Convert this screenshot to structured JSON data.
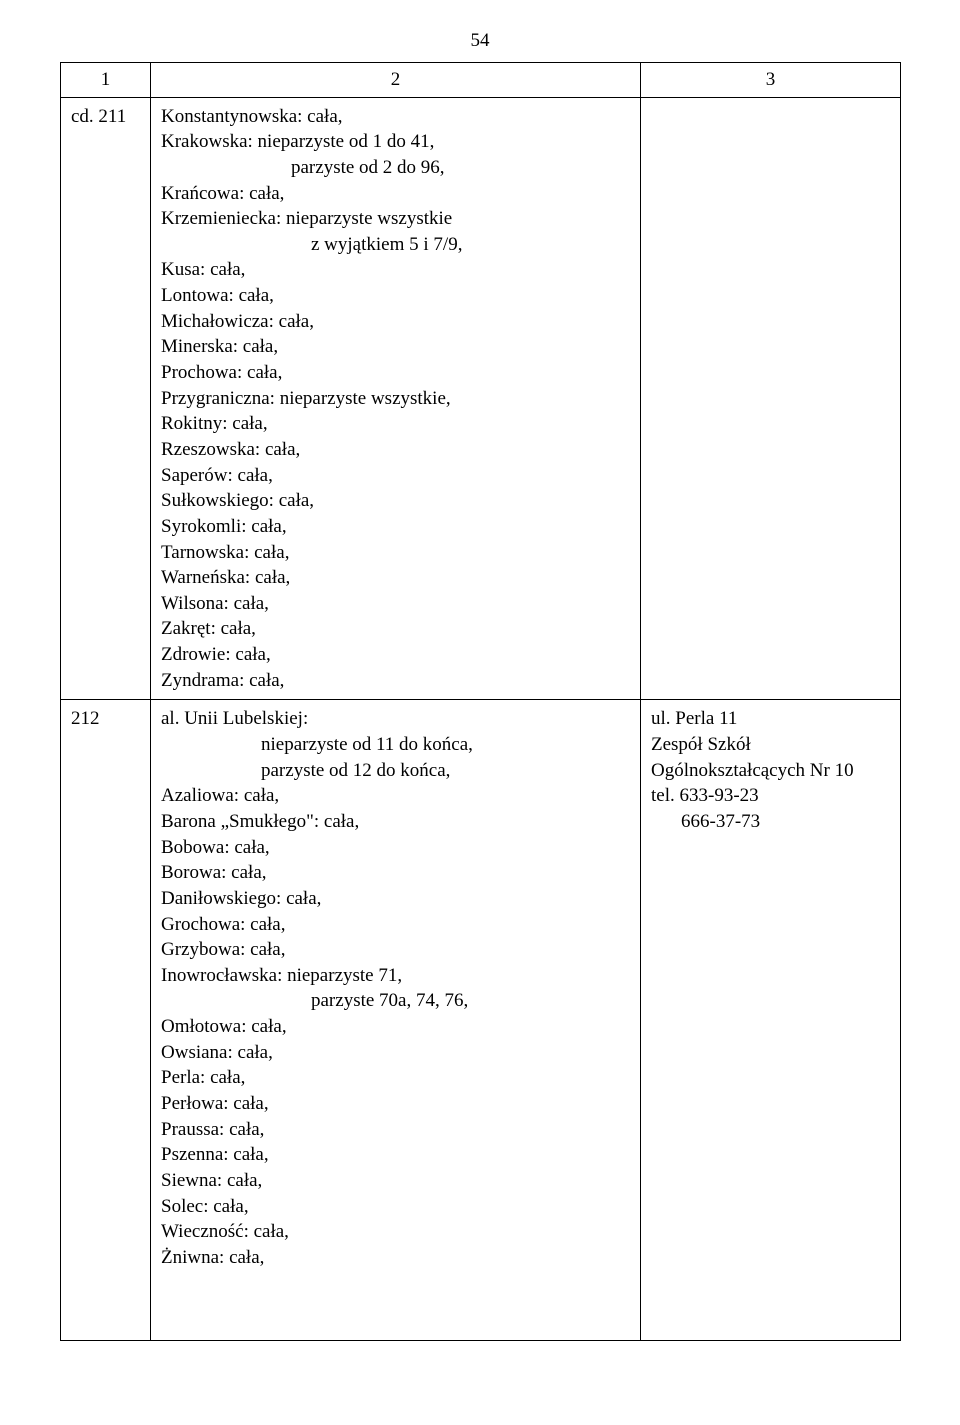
{
  "page_number": "54",
  "header": {
    "c1": "1",
    "c2": "2",
    "c3": "3"
  },
  "row1": {
    "label": "cd. 211",
    "lines": [
      "Konstantynowska: cała,",
      "Krakowska: nieparzyste od 1 do 41,",
      {
        "text": "parzyste od 2 do 96,",
        "class": "indent1"
      },
      "Krańcowa: cała,",
      "Krzemieniecka: nieparzyste wszystkie",
      {
        "text": "z wyjątkiem 5 i 7/9,",
        "class": "indent-wy"
      },
      "Kusa: cała,",
      "Lontowa: cała,",
      "Michałowicza: cała,",
      "Minerska: cała,",
      "Prochowa: cała,",
      "Przygraniczna: nieparzyste wszystkie,",
      "Rokitny: cała,",
      "Rzeszowska: cała,",
      "Saperów: cała,",
      "Sułkowskiego: cała,",
      "Syrokomli: cała,",
      "Tarnowska: cała,",
      "Warneńska: cała,",
      "Wilsona: cała,",
      "Zakręt: cała,",
      "Zdrowie: cała,",
      "Zyndrama: cała,"
    ],
    "col3": ""
  },
  "row2": {
    "label": "212",
    "lines": [
      "al. Unii Lubelskiej:",
      {
        "text": "nieparzyste od 11 do końca,",
        "class": "indent-parz"
      },
      {
        "text": "parzyste od 12 do końca,",
        "class": "indent-parz"
      },
      "Azaliowa: cała,",
      "Barona „Smukłego\": cała,",
      "Bobowa: cała,",
      "Borowa: cała,",
      "Daniłowskiego: cała,",
      "Grochowa: cała,",
      "Grzybowa: cała,",
      "Inowrocławska: nieparzyste 71,",
      {
        "text": "parzyste 70a, 74, 76,",
        "class": "indent-parz2"
      },
      "Omłotowa: cała,",
      "Owsiana: cała,",
      "Perla: cała,",
      "Perłowa: cała,",
      "Praussa: cała,",
      "Pszenna: cała,",
      "Siewna: cała,",
      "Solec: cała,",
      "Wieczność: cała,",
      "Żniwna: cała,"
    ],
    "col3_lines": [
      "ul. Perla 11",
      "Zespół Szkół",
      "Ogólnokształcących Nr 10",
      "tel. 633-93-23",
      {
        "text": "666-37-73",
        "class": "tel-indent"
      }
    ]
  }
}
